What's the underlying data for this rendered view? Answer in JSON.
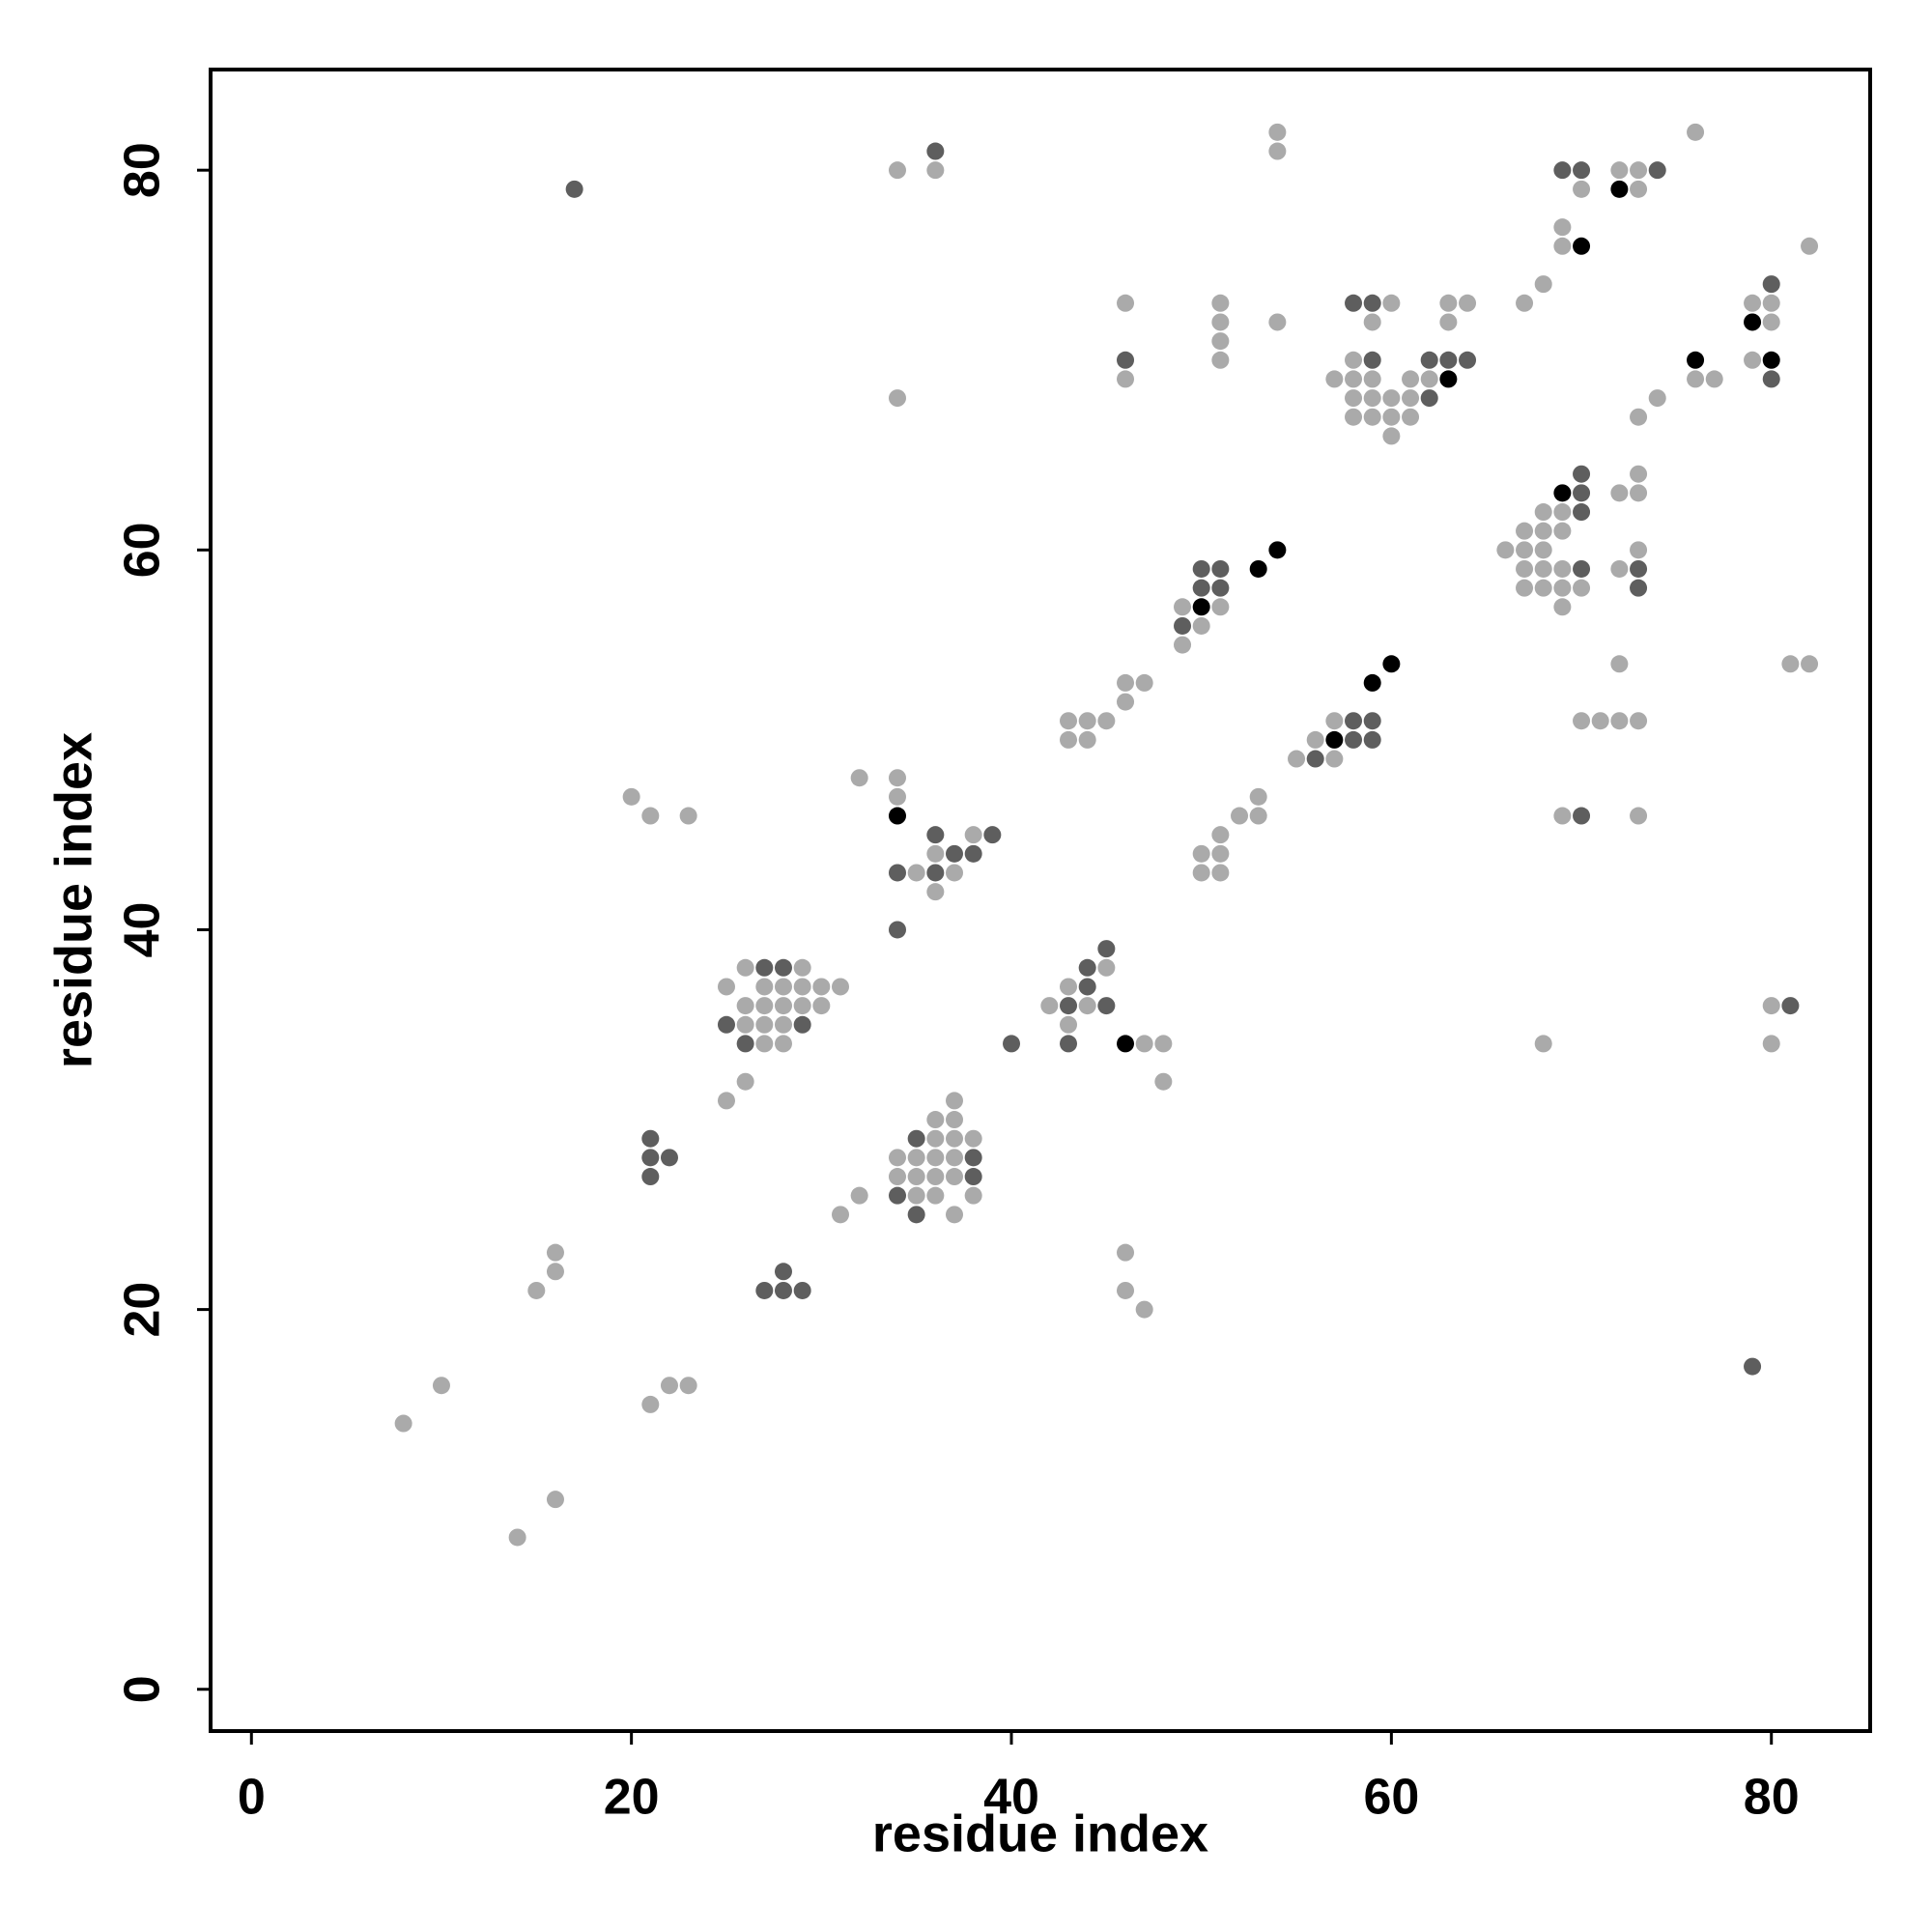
{
  "chart_data": {
    "type": "scatter",
    "x_label": "residue index",
    "y_label": "residue index",
    "xlim": [
      -2.15,
      85.2
    ],
    "ylim": [
      -2.2,
      85.3
    ],
    "xticks": [
      0,
      20,
      40,
      60,
      80
    ],
    "yticks": [
      0,
      20,
      40,
      60,
      80
    ],
    "series": [
      {
        "color": "#aaaaaa",
        "x": [
          54,
          76,
          54,
          34,
          36,
          72,
          73,
          70,
          73,
          69,
          69,
          82,
          68,
          46,
          51,
          60,
          63,
          64,
          67,
          79,
          80,
          51,
          54,
          59,
          63,
          80,
          51,
          51,
          58,
          79,
          46,
          57,
          58,
          59,
          61,
          62,
          76,
          77,
          34,
          58,
          59,
          60,
          61,
          74,
          58,
          59,
          60,
          61,
          73,
          60,
          73,
          72,
          73,
          68,
          69,
          67,
          68,
          69,
          66,
          67,
          68,
          73,
          67,
          68,
          69,
          72,
          67,
          68,
          69,
          70,
          49,
          51,
          69,
          50,
          49,
          72,
          81,
          82,
          46,
          47,
          46,
          43,
          44,
          45,
          57,
          70,
          71,
          72,
          73,
          43,
          44,
          56,
          55,
          57,
          32,
          34,
          20,
          34,
          53,
          21,
          23,
          52,
          53,
          69,
          73,
          38,
          51,
          36,
          50,
          51,
          35,
          37,
          50,
          51,
          36,
          26,
          29,
          45,
          25,
          27,
          28,
          29,
          30,
          31,
          43,
          26,
          27,
          28,
          29,
          30,
          42,
          44,
          80,
          26,
          27,
          28,
          43,
          27,
          28,
          47,
          48,
          68,
          80,
          26,
          48,
          25,
          37,
          36,
          37,
          36,
          37,
          38,
          34,
          35,
          36,
          37,
          34,
          35,
          36,
          37,
          32,
          35,
          36,
          38,
          31,
          37,
          16,
          46,
          16,
          15,
          46,
          47,
          10,
          22,
          23,
          21,
          8,
          16,
          14
        ],
        "values": [
          82,
          82,
          81,
          80,
          80,
          80,
          80,
          79,
          79,
          77,
          76,
          76,
          74,
          73,
          73,
          73,
          73,
          73,
          73,
          73,
          73,
          72,
          72,
          72,
          72,
          72,
          71,
          70,
          70,
          70,
          69,
          69,
          69,
          69,
          69,
          69,
          69,
          69,
          68,
          68,
          68,
          68,
          68,
          68,
          67,
          67,
          67,
          67,
          67,
          66,
          64,
          63,
          63,
          62,
          62,
          61,
          61,
          61,
          60,
          60,
          60,
          60,
          59,
          59,
          59,
          59,
          58,
          58,
          58,
          58,
          57,
          57,
          57,
          56,
          55,
          54,
          54,
          54,
          53,
          53,
          52,
          51,
          51,
          51,
          51,
          51,
          51,
          51,
          51,
          50,
          50,
          50,
          49,
          49,
          48,
          48,
          47,
          47,
          47,
          46,
          46,
          46,
          46,
          46,
          46,
          45,
          45,
          44,
          44,
          44,
          43,
          43,
          43,
          43,
          42,
          38,
          38,
          38,
          37,
          37,
          37,
          37,
          37,
          37,
          37,
          36,
          36,
          36,
          36,
          36,
          36,
          36,
          36,
          35,
          35,
          35,
          35,
          34,
          34,
          34,
          34,
          34,
          34,
          32,
          32,
          31,
          31,
          30,
          30,
          29,
          29,
          29,
          28,
          28,
          28,
          28,
          27,
          27,
          27,
          27,
          26,
          26,
          26,
          26,
          25,
          25,
          23,
          23,
          22,
          21,
          21,
          20,
          16,
          16,
          16,
          15,
          14,
          10,
          8
        ]
      },
      {
        "color": "#5e5e5e",
        "x": [
          36,
          69,
          70,
          74,
          17,
          80,
          58,
          59,
          46,
          59,
          62,
          63,
          64,
          80,
          62,
          70,
          70,
          70,
          50,
          51,
          70,
          73,
          50,
          51,
          73,
          49,
          58,
          59,
          58,
          59,
          56,
          70,
          36,
          39,
          37,
          38,
          34,
          36,
          34,
          45,
          27,
          28,
          44,
          44,
          43,
          45,
          81,
          25,
          29,
          26,
          40,
          43,
          21,
          35,
          21,
          22,
          38,
          21,
          38,
          34,
          35,
          28,
          27,
          28,
          29,
          79
        ],
        "values": [
          81,
          80,
          80,
          80,
          79,
          74,
          73,
          73,
          70,
          70,
          70,
          70,
          70,
          69,
          68,
          64,
          63,
          62,
          59,
          59,
          59,
          59,
          58,
          58,
          58,
          56,
          51,
          51,
          50,
          50,
          49,
          46,
          45,
          45,
          44,
          44,
          43,
          43,
          40,
          39,
          38,
          38,
          38,
          37,
          36,
          36,
          36,
          35,
          35,
          34,
          34,
          34,
          29,
          29,
          28,
          28,
          28,
          27,
          27,
          26,
          25,
          22,
          21,
          21,
          21,
          17
        ]
      },
      {
        "color": "#000000",
        "x": [
          72,
          70,
          79,
          76,
          80,
          63,
          69,
          54,
          53,
          50,
          60,
          59,
          57,
          34,
          46
        ],
        "values": [
          79,
          76,
          72,
          70,
          70,
          69,
          63,
          60,
          59,
          57,
          54,
          53,
          50,
          46,
          34
        ]
      }
    ]
  }
}
